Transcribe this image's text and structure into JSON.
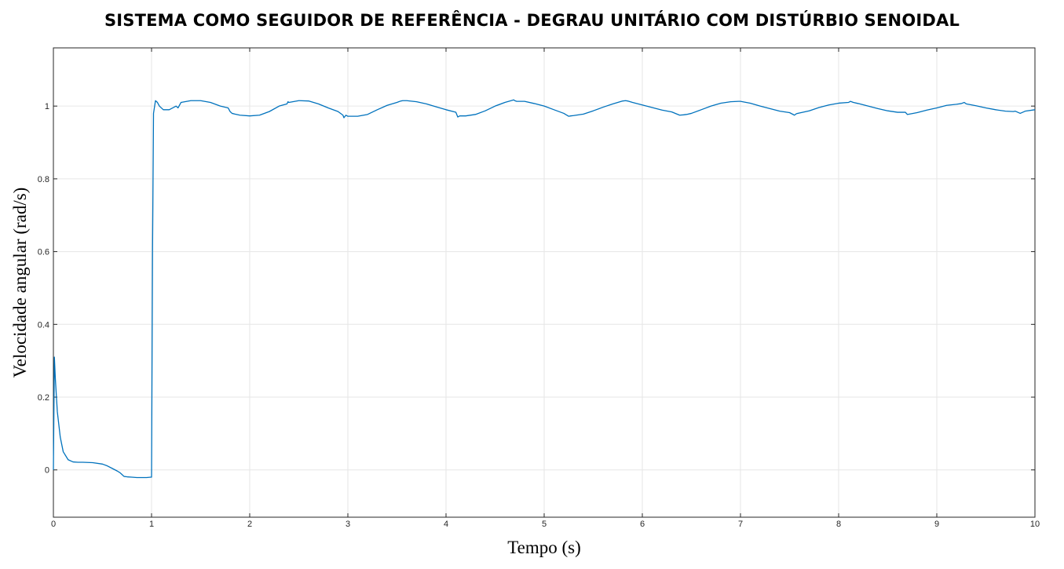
{
  "chart_data": {
    "type": "line",
    "title": "SISTEMA COMO SEGUIDOR DE REFERÊNCIA - DEGRAU UNITÁRIO COM DISTÚRBIO SENOIDAL",
    "xlabel": "Tempo (s)",
    "ylabel": "Velocidade angular (rad/s)",
    "xlim": [
      0,
      10
    ],
    "ylim": [
      -0.13,
      1.16
    ],
    "xticks": [
      "0",
      "1",
      "2",
      "3",
      "4",
      "5",
      "6",
      "7",
      "8",
      "9",
      "10"
    ],
    "yticks": [
      "0",
      "0.2",
      "0.4",
      "0.6",
      "0.8",
      "1"
    ],
    "grid": true,
    "series": [
      {
        "color": "#0072BD",
        "x": [
          0,
          0.01,
          0.02,
          0.04,
          0.07,
          0.1,
          0.15,
          0.2,
          0.25,
          0.3,
          0.4,
          0.5,
          0.55,
          0.6,
          0.65,
          0.68,
          0.7,
          0.72,
          0.75,
          0.8,
          0.85,
          0.9,
          0.95,
          0.99,
          1.0,
          1.01,
          1.02,
          1.04,
          1.06,
          1.08,
          1.12,
          1.18,
          1.25,
          1.27,
          1.3,
          1.4,
          1.5,
          1.6,
          1.7,
          1.78,
          1.8,
          1.82,
          1.85,
          1.9,
          2.0,
          2.1,
          2.2,
          2.3,
          2.38,
          2.39,
          2.4,
          2.5,
          2.6,
          2.7,
          2.8,
          2.9,
          2.95,
          2.96,
          2.98,
          3.0,
          3.1,
          3.2,
          3.3,
          3.4,
          3.5,
          3.54,
          3.56,
          3.6,
          3.7,
          3.8,
          3.9,
          4.0,
          4.1,
          4.12,
          4.14,
          4.2,
          4.3,
          4.4,
          4.5,
          4.6,
          4.69,
          4.7,
          4.72,
          4.8,
          4.9,
          5.0,
          5.1,
          5.2,
          5.25,
          5.27,
          5.3,
          5.4,
          5.5,
          5.6,
          5.7,
          5.8,
          5.83,
          5.85,
          5.9,
          6.0,
          6.1,
          6.2,
          6.3,
          6.38,
          6.42,
          6.45,
          6.5,
          6.6,
          6.7,
          6.8,
          6.9,
          6.98,
          7.0,
          7.1,
          7.2,
          7.3,
          7.4,
          7.5,
          7.55,
          7.57,
          7.6,
          7.7,
          7.8,
          7.9,
          8.0,
          8.1,
          8.12,
          8.15,
          8.2,
          8.3,
          8.4,
          8.5,
          8.6,
          8.68,
          8.7,
          8.8,
          8.9,
          9.0,
          9.1,
          9.2,
          9.25,
          9.28,
          9.3,
          9.4,
          9.5,
          9.6,
          9.7,
          9.78,
          9.8,
          9.85,
          9.9,
          10.0
        ],
        "y": [
          0,
          0.31,
          0.25,
          0.16,
          0.09,
          0.05,
          0.028,
          0.022,
          0.021,
          0.021,
          0.02,
          0.016,
          0.011,
          0.004,
          -0.003,
          -0.008,
          -0.013,
          -0.018,
          -0.019,
          -0.02,
          -0.021,
          -0.021,
          -0.021,
          -0.02,
          -0.02,
          0.6,
          0.98,
          1.015,
          1.01,
          1.0,
          0.99,
          0.99,
          1.0,
          0.995,
          1.01,
          1.015,
          1.015,
          1.01,
          1.0,
          0.995,
          0.985,
          0.98,
          0.978,
          0.975,
          0.973,
          0.975,
          0.985,
          1.0,
          1.006,
          1.012,
          1.01,
          1.015,
          1.014,
          1.006,
          0.995,
          0.985,
          0.975,
          0.968,
          0.975,
          0.972,
          0.972,
          0.977,
          0.99,
          1.002,
          1.01,
          1.014,
          1.015,
          1.015,
          1.012,
          1.006,
          0.998,
          0.99,
          0.983,
          0.97,
          0.973,
          0.973,
          0.977,
          0.987,
          1.0,
          1.01,
          1.017,
          1.015,
          1.013,
          1.013,
          1.007,
          1.0,
          0.99,
          0.98,
          0.972,
          0.973,
          0.974,
          0.978,
          0.987,
          0.997,
          1.006,
          1.014,
          1.015,
          1.014,
          1.01,
          1.003,
          0.996,
          0.989,
          0.984,
          0.975,
          0.976,
          0.977,
          0.98,
          0.99,
          1.0,
          1.008,
          1.012,
          1.013,
          1.013,
          1.008,
          1.0,
          0.993,
          0.986,
          0.982,
          0.975,
          0.979,
          0.981,
          0.987,
          0.996,
          1.003,
          1.008,
          1.01,
          1.013,
          1.01,
          1.007,
          1.0,
          0.993,
          0.987,
          0.983,
          0.983,
          0.977,
          0.982,
          0.989,
          0.995,
          1.002,
          1.005,
          1.007,
          1.01,
          1.006,
          1.001,
          0.995,
          0.99,
          0.986,
          0.985,
          0.986,
          0.98,
          0.986,
          0.99
        ]
      }
    ]
  }
}
